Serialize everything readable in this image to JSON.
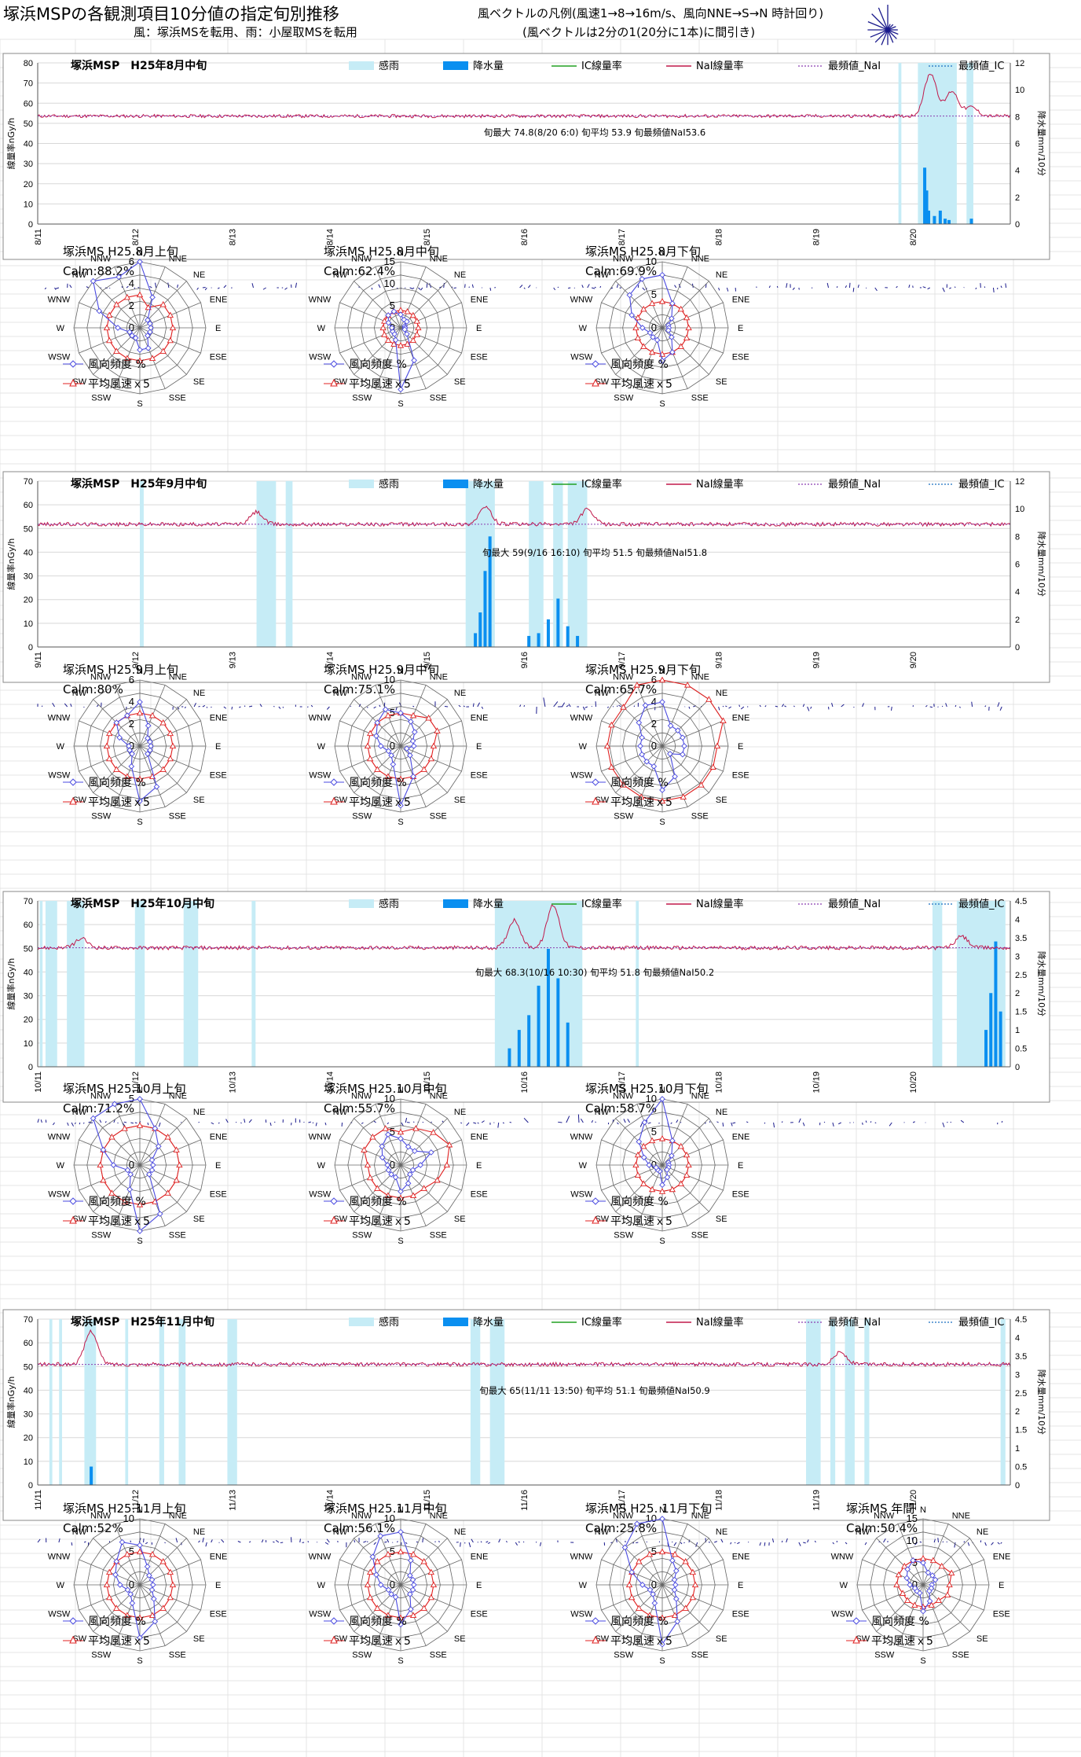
{
  "header": {
    "title": "塚浜MSPの各観測項目10分値の指定旬別推移",
    "subtitle": "風：塚浜MSを転用、雨：小屋取MSを転用",
    "vector_legend_line1": "風ベクトルの凡例(風速1→8→16m/s、風向NNE→S→N 時計回り)",
    "vector_legend_line2": "(風ベクトルは2分の1(20分に1本)に間引き)"
  },
  "series_legend": [
    "感雨",
    "降水量",
    "IC線量率",
    "NaI線量率",
    "最頻値_NaI",
    "最頻値_IC"
  ],
  "axis_labels": {
    "y_left": "線量率nGy/h",
    "y_right": "降水量mm/10分"
  },
  "rose_legend": [
    "風向頻度 %",
    "平均風速ｘ5"
  ],
  "directions": [
    "N",
    "NNE",
    "NE",
    "ENE",
    "E",
    "ESE",
    "SE",
    "SSE",
    "S",
    "SSW",
    "SW",
    "WSW",
    "W",
    "WNW",
    "NW",
    "NNW"
  ],
  "colors": {
    "nai": "#c0184a",
    "ic": "#22a022",
    "rain_sense": "#c6ecf6",
    "precip": "#0a8ff0",
    "mode_nai": "#8a3db0",
    "mode_ic": "#1b6fc0",
    "wind_vector": "#1a1a8c",
    "freq": "#4a4ae0",
    "speed": "#e02020"
  },
  "chart_data": [
    {
      "type": "line",
      "title": "塚浜MSP　H25年8月中旬",
      "x_ticks": [
        "8/11",
        "8/12",
        "8/13",
        "8/14",
        "8/15",
        "8/16",
        "8/17",
        "8/18",
        "8/19",
        "8/20"
      ],
      "y_left_ticks": [
        "0",
        "10",
        "20",
        "30",
        "40",
        "50",
        "60",
        "70",
        "80"
      ],
      "y_right_ticks": [
        "0",
        "2",
        "4",
        "6",
        "8",
        "10",
        "12"
      ],
      "ylim": [
        0,
        80
      ],
      "ylim_right": [
        0,
        12
      ],
      "nai_baseline": 53.6,
      "nai_peaks": [
        [
          9.18,
          74.8
        ],
        [
          9.4,
          66
        ],
        [
          9.6,
          58
        ]
      ],
      "mode_nai": 53.6,
      "annotation": "旬最大 74.8(8/20 6:0)  旬平均 53.9  旬最頻値NaI53.6",
      "rain_sense_intervals": [
        [
          8.85,
          8.88
        ],
        [
          9.05,
          9.45
        ],
        [
          9.55,
          9.62
        ]
      ],
      "precip_bars": [
        [
          9.12,
          4.2
        ],
        [
          9.14,
          2.5
        ],
        [
          9.16,
          1.0
        ],
        [
          9.22,
          0.6
        ],
        [
          9.28,
          1.0
        ],
        [
          9.33,
          0.4
        ],
        [
          9.37,
          0.3
        ],
        [
          9.6,
          0.4
        ]
      ]
    },
    {
      "type": "line",
      "title": "塚浜MSP　H25年9月中旬",
      "x_ticks": [
        "9/11",
        "9/12",
        "9/13",
        "9/14",
        "9/15",
        "9/16",
        "9/17",
        "9/18",
        "9/19",
        "9/20"
      ],
      "y_left_ticks": [
        "0",
        "10",
        "20",
        "30",
        "40",
        "50",
        "60",
        "70"
      ],
      "y_right_ticks": [
        "0",
        "2",
        "4",
        "6",
        "8",
        "10",
        "12"
      ],
      "ylim": [
        0,
        70
      ],
      "ylim_right": [
        0,
        12
      ],
      "nai_baseline": 51.8,
      "nai_peaks": [
        [
          2.25,
          57
        ],
        [
          4.6,
          59
        ],
        [
          5.65,
          58
        ]
      ],
      "mode_nai": 51.8,
      "annotation": "旬最大 59(9/16 16:10)  旬平均 51.5  旬最頻値NaI51.8",
      "rain_sense_intervals": [
        [
          1.05,
          1.09
        ],
        [
          2.25,
          2.45
        ],
        [
          2.55,
          2.62
        ],
        [
          4.4,
          4.7
        ],
        [
          5.05,
          5.2
        ],
        [
          5.3,
          5.4
        ],
        [
          5.45,
          5.65
        ]
      ],
      "precip_bars": [
        [
          4.5,
          1.0
        ],
        [
          4.55,
          2.5
        ],
        [
          4.6,
          5.5
        ],
        [
          4.65,
          8.0
        ],
        [
          5.05,
          0.8
        ],
        [
          5.15,
          1.0
        ],
        [
          5.25,
          2.0
        ],
        [
          5.35,
          3.5
        ],
        [
          5.45,
          1.5
        ],
        [
          5.55,
          0.8
        ]
      ]
    },
    {
      "type": "line",
      "title": "塚浜MSP　H25年10月中旬",
      "x_ticks": [
        "10/11",
        "10/12",
        "10/13",
        "10/14",
        "10/15",
        "10/16",
        "10/17",
        "10/18",
        "10/19",
        "10/20"
      ],
      "y_left_ticks": [
        "0",
        "10",
        "20",
        "30",
        "40",
        "50",
        "60",
        "70"
      ],
      "y_right_ticks": [
        "0",
        "0.5",
        "1",
        "1.5",
        "2",
        "2.5",
        "3",
        "3.5",
        "4",
        "4.5"
      ],
      "ylim": [
        0,
        70
      ],
      "ylim_right": [
        0,
        4.5
      ],
      "nai_baseline": 50.2,
      "nai_peaks": [
        [
          0.45,
          54
        ],
        [
          4.9,
          62
        ],
        [
          5.3,
          68.3
        ],
        [
          9.5,
          55
        ]
      ],
      "mode_nai": 50.2,
      "annotation": "旬最大 68.3(10/16 10:30)  旬平均 51.8  旬最頻値NaI50.2",
      "rain_sense_intervals": [
        [
          0.02,
          0.05
        ],
        [
          0.08,
          0.2
        ],
        [
          0.3,
          0.48
        ],
        [
          1.0,
          1.1
        ],
        [
          1.5,
          1.65
        ],
        [
          2.2,
          2.24
        ],
        [
          4.7,
          5.6
        ],
        [
          6.15,
          6.18
        ],
        [
          9.2,
          9.3
        ],
        [
          9.45,
          9.95
        ]
      ],
      "precip_bars": [
        [
          4.85,
          0.5
        ],
        [
          4.95,
          1.0
        ],
        [
          5.05,
          1.4
        ],
        [
          5.15,
          2.2
        ],
        [
          5.25,
          3.2
        ],
        [
          5.35,
          2.4
        ],
        [
          5.45,
          1.2
        ],
        [
          9.75,
          1.0
        ],
        [
          9.8,
          2.0
        ],
        [
          9.85,
          3.4
        ],
        [
          9.9,
          1.5
        ]
      ]
    },
    {
      "type": "line",
      "title": "塚浜MSP　H25年11月中旬",
      "x_ticks": [
        "11/11",
        "11/12",
        "11/13",
        "11/14",
        "11/15",
        "11/16",
        "11/17",
        "11/18",
        "11/19",
        "11/20"
      ],
      "y_left_ticks": [
        "0",
        "10",
        "20",
        "30",
        "40",
        "50",
        "60",
        "70"
      ],
      "y_right_ticks": [
        "0",
        "0.5",
        "1",
        "1.5",
        "2",
        "2.5",
        "3",
        "3.5",
        "4",
        "4.5"
      ],
      "ylim": [
        0,
        70
      ],
      "ylim_right": [
        0,
        4.5
      ],
      "nai_baseline": 50.9,
      "nai_peaks": [
        [
          0.55,
          65
        ],
        [
          8.25,
          56
        ]
      ],
      "mode_nai": 50.9,
      "annotation": "旬最大 65(11/11 13:50)  旬平均 51.1  旬最頻値NaI50.9",
      "rain_sense_intervals": [
        [
          0.12,
          0.15
        ],
        [
          0.22,
          0.25
        ],
        [
          0.48,
          0.6
        ],
        [
          0.9,
          0.93
        ],
        [
          1.25,
          1.3
        ],
        [
          1.45,
          1.52
        ],
        [
          1.95,
          2.05
        ],
        [
          4.45,
          4.55
        ],
        [
          4.65,
          4.8
        ],
        [
          7.9,
          8.05
        ],
        [
          8.15,
          8.2
        ],
        [
          8.3,
          8.4
        ],
        [
          8.5,
          8.55
        ],
        [
          9.9,
          9.95
        ]
      ],
      "precip_bars": [
        [
          0.55,
          0.5
        ]
      ]
    }
  ],
  "roses": [
    {
      "title": "塚浜MS H25.8月上旬",
      "calm": "Calm:88.2%",
      "ticks": [
        "0",
        "2",
        "4",
        "6"
      ]
    },
    {
      "title": "塚浜MS H25.8月中旬",
      "calm": "Calm:62.4%",
      "ticks": [
        "0",
        "5",
        "10",
        "15"
      ]
    },
    {
      "title": "塚浜MS H25.8月下旬",
      "calm": "Calm:69.9%",
      "ticks": [
        "0",
        "5",
        "10"
      ]
    },
    {
      "title": "塚浜MS H25.9月上旬",
      "calm": "Calm:80%",
      "ticks": [
        "0",
        "2",
        "4",
        "6"
      ]
    },
    {
      "title": "塚浜MS H25.9月中旬",
      "calm": "Calm:75.1%",
      "ticks": [
        "0",
        "5",
        "10"
      ]
    },
    {
      "title": "塚浜MS H25.9月下旬",
      "calm": "Calm:65.7%",
      "ticks": [
        "0",
        "2",
        "4",
        "6"
      ]
    },
    {
      "title": "塚浜MS H25.10月上旬",
      "calm": "Calm:71.2%",
      "ticks": [
        "0",
        "5"
      ]
    },
    {
      "title": "塚浜MS H25.10月中旬",
      "calm": "Calm:55.7%",
      "ticks": [
        "0",
        "5",
        "10"
      ]
    },
    {
      "title": "塚浜MS H25.10月下旬",
      "calm": "Calm:58.7%",
      "ticks": [
        "0",
        "5",
        "10"
      ]
    },
    {
      "title": "塚浜MS H25.11月上旬",
      "calm": "Calm:52%",
      "ticks": [
        "0",
        "5",
        "10"
      ]
    },
    {
      "title": "塚浜MS H25.11月中旬",
      "calm": "Calm:56.1%",
      "ticks": [
        "0",
        "5",
        "10"
      ]
    },
    {
      "title": "塚浜MS H25. 11月下旬",
      "calm": "Calm:25.8%",
      "ticks": [
        "0",
        "5",
        "10"
      ]
    },
    {
      "title": "塚浜MS 年間",
      "calm": "Calm:50.4%",
      "ticks": [
        "0",
        "5",
        "10",
        "15"
      ]
    }
  ],
  "rose_shapes": [
    {
      "freq": [
        6,
        3,
        1,
        1,
        1,
        1,
        1,
        2,
        2,
        1,
        1,
        1,
        2,
        4,
        6,
        5
      ],
      "speed": [
        3,
        2,
        3,
        3,
        3,
        3,
        3,
        3,
        3,
        3,
        3,
        3,
        3,
        3,
        3,
        3
      ]
    },
    {
      "freq": [
        3,
        2,
        2,
        1,
        1,
        1,
        2,
        8,
        14,
        3,
        2,
        2,
        2,
        3,
        4,
        4
      ],
      "speed": [
        4,
        4,
        4,
        4,
        4,
        4,
        4,
        4,
        4,
        4,
        4,
        4,
        4,
        4,
        4,
        4
      ]
    },
    {
      "freq": [
        8,
        4,
        2,
        1,
        1,
        1,
        2,
        4,
        5,
        2,
        2,
        2,
        3,
        5,
        7,
        8
      ],
      "speed": [
        4,
        4,
        4,
        4,
        4,
        4,
        4,
        4,
        4,
        4,
        4,
        4,
        4,
        4,
        4,
        4
      ]
    },
    {
      "freq": [
        4,
        2,
        1,
        1,
        1,
        1,
        1,
        4,
        5,
        2,
        1,
        1,
        1,
        2,
        3,
        3
      ],
      "speed": [
        3,
        3,
        3,
        3,
        3,
        3,
        3,
        3,
        3,
        3,
        3,
        3,
        3,
        3,
        3,
        3
      ]
    },
    {
      "freq": [
        5,
        4,
        3,
        2,
        2,
        1,
        2,
        5,
        9,
        3,
        2,
        2,
        3,
        4,
        5,
        6
      ],
      "speed": [
        5,
        5,
        6,
        6,
        5,
        5,
        5,
        5,
        5,
        5,
        5,
        5,
        5,
        5,
        5,
        5
      ]
    },
    {
      "freq": [
        4,
        2,
        2,
        2,
        2,
        2,
        1,
        3,
        4,
        2,
        2,
        2,
        2,
        2,
        3,
        4
      ],
      "speed": [
        6,
        6,
        7,
        6,
        5,
        5,
        5,
        5,
        5,
        5,
        5,
        5,
        5,
        5,
        5,
        6
      ]
    },
    {
      "freq": [
        6,
        3,
        2,
        1,
        1,
        1,
        1,
        4,
        6,
        2,
        1,
        1,
        2,
        3,
        5,
        6
      ],
      "speed": [
        3,
        3,
        3,
        3,
        3,
        3,
        3,
        3,
        3,
        3,
        3,
        3,
        3,
        3,
        3,
        3
      ]
    },
    {
      "freq": [
        4,
        3,
        3,
        5,
        3,
        2,
        2,
        3,
        4,
        2,
        2,
        2,
        2,
        3,
        4,
        5
      ],
      "speed": [
        5,
        6,
        7,
        8,
        7,
        6,
        5,
        5,
        5,
        5,
        5,
        5,
        5,
        6,
        6,
        6
      ]
    },
    {
      "freq": [
        10,
        4,
        2,
        1,
        1,
        1,
        1,
        2,
        3,
        1,
        1,
        1,
        2,
        3,
        5,
        7
      ],
      "speed": [
        4,
        4,
        4,
        4,
        4,
        4,
        4,
        4,
        4,
        4,
        4,
        4,
        4,
        4,
        4,
        4
      ]
    },
    {
      "freq": [
        6,
        3,
        2,
        2,
        2,
        2,
        3,
        6,
        8,
        3,
        2,
        2,
        3,
        4,
        5,
        7
      ],
      "speed": [
        5,
        5,
        5,
        5,
        5,
        5,
        5,
        5,
        5,
        5,
        5,
        5,
        5,
        5,
        5,
        5
      ]
    },
    {
      "freq": [
        8,
        4,
        2,
        2,
        2,
        2,
        2,
        4,
        6,
        2,
        2,
        2,
        3,
        4,
        6,
        8
      ],
      "speed": [
        5,
        5,
        5,
        5,
        5,
        5,
        5,
        5,
        5,
        5,
        5,
        5,
        5,
        5,
        5,
        5
      ]
    },
    {
      "freq": [
        10,
        4,
        3,
        2,
        2,
        2,
        3,
        6,
        9,
        3,
        2,
        2,
        3,
        5,
        8,
        12
      ],
      "speed": [
        5,
        5,
        5,
        5,
        5,
        5,
        5,
        5,
        5,
        5,
        5,
        5,
        5,
        5,
        5,
        5
      ]
    },
    {
      "freq": [
        5,
        3,
        3,
        3,
        2,
        2,
        2,
        4,
        6,
        2,
        2,
        2,
        3,
        4,
        5,
        6
      ],
      "speed": [
        6,
        6,
        6,
        7,
        6,
        6,
        5,
        5,
        5,
        5,
        5,
        5,
        6,
        6,
        6,
        6
      ]
    }
  ],
  "rose_max": [
    6,
    15,
    10,
    6,
    10,
    6,
    5,
    10,
    10,
    10,
    10,
    10,
    15
  ]
}
